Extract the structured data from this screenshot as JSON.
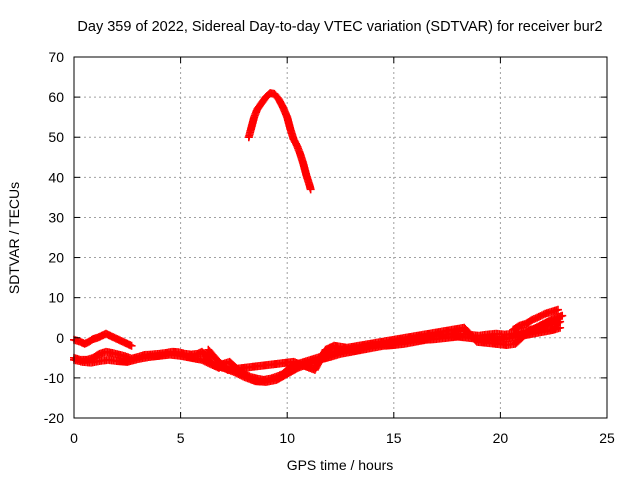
{
  "chart_data": {
    "type": "scatter",
    "title": "Day 359 of 2022, Sidereal Day-to-day VTEC variation (SDTVAR) for receiver bur2",
    "xlabel": "GPS time / hours",
    "ylabel": "SDTVAR / TECUs",
    "xlim": [
      0,
      25
    ],
    "ylim": [
      -20,
      70
    ],
    "xticks": [
      0,
      5,
      10,
      15,
      20,
      25
    ],
    "yticks": [
      -20,
      -10,
      0,
      10,
      20,
      30,
      40,
      50,
      60,
      70
    ],
    "grid": true,
    "marker": "plus",
    "color": "#ff0000",
    "series": [
      {
        "name": "bur2-upper-arc",
        "points": [
          [
            8.2,
            50
          ],
          [
            8.3,
            52
          ],
          [
            8.45,
            55
          ],
          [
            8.6,
            57
          ],
          [
            8.8,
            58.5
          ],
          [
            9.0,
            60
          ],
          [
            9.2,
            61
          ],
          [
            9.4,
            60.8
          ],
          [
            9.6,
            59.5
          ],
          [
            9.8,
            57.5
          ],
          [
            10.0,
            55
          ],
          [
            10.15,
            52
          ],
          [
            10.3,
            49.5
          ],
          [
            10.45,
            48
          ],
          [
            10.6,
            46
          ],
          [
            10.75,
            43.5
          ],
          [
            10.9,
            40.5
          ],
          [
            11.05,
            38
          ],
          [
            11.1,
            37
          ]
        ]
      },
      {
        "name": "bur2-main-band",
        "points": [
          [
            0,
            -5
          ],
          [
            0.3,
            -5.5
          ],
          [
            0.6,
            -5.5
          ],
          [
            0.9,
            -5
          ],
          [
            1.2,
            -4
          ],
          [
            1.5,
            -3.5
          ],
          [
            1.8,
            -3.8
          ],
          [
            2.1,
            -4.2
          ],
          [
            2.4,
            -4.6
          ],
          [
            2.7,
            -5.2
          ],
          [
            3.0,
            -4.8
          ],
          [
            3.3,
            -4.3
          ],
          [
            3.6,
            -4.2
          ],
          [
            4.0,
            -4
          ],
          [
            4.3,
            -3.8
          ],
          [
            4.6,
            -3.5
          ],
          [
            4.9,
            -3.6
          ],
          [
            5.2,
            -4
          ],
          [
            5.5,
            -4.2
          ],
          [
            5.8,
            -4
          ],
          [
            6.0,
            -3.5
          ],
          [
            6.2,
            -4.5
          ],
          [
            6.4,
            -6
          ],
          [
            6.6,
            -7
          ],
          [
            6.8,
            -7.5
          ],
          [
            7.0,
            -6.5
          ],
          [
            7.3,
            -6
          ],
          [
            7.5,
            -7
          ],
          [
            7.7,
            -8
          ],
          [
            8.0,
            -9
          ],
          [
            8.3,
            -9.8
          ],
          [
            8.6,
            -10.2
          ],
          [
            8.9,
            -10.5
          ],
          [
            9.2,
            -10.2
          ],
          [
            9.5,
            -9.7
          ],
          [
            9.8,
            -9
          ],
          [
            10.0,
            -8
          ],
          [
            10.2,
            -7.2
          ],
          [
            10.5,
            -6.5
          ],
          [
            10.8,
            -6
          ],
          [
            11.1,
            -5.5
          ],
          [
            11.4,
            -5
          ],
          [
            11.7,
            -4.5
          ],
          [
            12.0,
            -3.8
          ],
          [
            12.3,
            -3.3
          ],
          [
            12.6,
            -3
          ],
          [
            13.0,
            -2.8
          ],
          [
            13.4,
            -2.5
          ],
          [
            13.8,
            -2
          ],
          [
            14.2,
            -1.8
          ],
          [
            14.6,
            -1.5
          ],
          [
            15.0,
            -1
          ],
          [
            15.4,
            -0.7
          ],
          [
            15.8,
            -0.3
          ],
          [
            16.2,
            0
          ],
          [
            16.6,
            0.3
          ],
          [
            17.0,
            0.5
          ],
          [
            17.4,
            0.8
          ],
          [
            17.8,
            1
          ],
          [
            18.2,
            1
          ],
          [
            18.6,
            0.7
          ],
          [
            19.0,
            0.5
          ],
          [
            19.4,
            0.8
          ],
          [
            19.8,
            1
          ],
          [
            20.2,
            0.8
          ],
          [
            20.6,
            1
          ],
          [
            21.0,
            1.5
          ],
          [
            21.4,
            2
          ],
          [
            21.8,
            2.5
          ],
          [
            22.2,
            3
          ],
          [
            22.6,
            3.5
          ],
          [
            22.8,
            4
          ]
        ]
      },
      {
        "name": "bur2-lower-band",
        "points": [
          [
            0,
            -5.5
          ],
          [
            0.4,
            -6
          ],
          [
            0.8,
            -6.2
          ],
          [
            1.2,
            -5.8
          ],
          [
            1.6,
            -5.5
          ],
          [
            2.0,
            -5.8
          ],
          [
            2.5,
            -6
          ],
          [
            3.0,
            -5.3
          ],
          [
            3.5,
            -4.8
          ],
          [
            4.0,
            -4.5
          ],
          [
            4.5,
            -4.2
          ],
          [
            5.0,
            -4.5
          ],
          [
            5.5,
            -5
          ],
          [
            6.0,
            -5.5
          ],
          [
            6.5,
            -6.8
          ],
          [
            7.0,
            -7.5
          ],
          [
            7.5,
            -8.5
          ],
          [
            8.0,
            -9.8
          ],
          [
            8.5,
            -10.8
          ],
          [
            9.0,
            -11
          ],
          [
            9.5,
            -10.5
          ],
          [
            10.0,
            -9
          ],
          [
            10.5,
            -7.5
          ],
          [
            11.0,
            -6.5
          ],
          [
            11.5,
            -5.5
          ],
          [
            12.0,
            -4.8
          ],
          [
            12.5,
            -4
          ],
          [
            13.0,
            -3.5
          ],
          [
            13.5,
            -3
          ],
          [
            14.0,
            -2.5
          ],
          [
            14.5,
            -2
          ],
          [
            15.0,
            -1.8
          ],
          [
            15.5,
            -1.5
          ],
          [
            16.0,
            -1
          ],
          [
            16.5,
            -0.5
          ],
          [
            17.0,
            -0.3
          ],
          [
            17.5,
            0
          ],
          [
            18.0,
            0.3
          ],
          [
            18.5,
            0
          ],
          [
            19.0,
            -0.3
          ],
          [
            19.5,
            0
          ],
          [
            20.0,
            -0.5
          ],
          [
            20.5,
            0
          ],
          [
            21.0,
            0.5
          ],
          [
            21.5,
            1
          ],
          [
            22.0,
            1.5
          ],
          [
            22.5,
            2
          ],
          [
            22.8,
            2.5
          ]
        ]
      },
      {
        "name": "bur2-early-arc",
        "points": [
          [
            0,
            -0.5
          ],
          [
            0.3,
            -1
          ],
          [
            0.5,
            -1.5
          ],
          [
            0.7,
            -1
          ],
          [
            0.9,
            -0.3
          ],
          [
            1.1,
            0
          ],
          [
            1.3,
            0.5
          ],
          [
            1.5,
            1
          ],
          [
            1.7,
            0.5
          ],
          [
            1.9,
            0
          ],
          [
            2.1,
            -0.5
          ],
          [
            2.3,
            -1
          ],
          [
            2.5,
            -1.5
          ],
          [
            2.7,
            -2
          ]
        ]
      },
      {
        "name": "bur2-rising-tail",
        "points": [
          [
            20.6,
            2
          ],
          [
            20.9,
            3
          ],
          [
            21.2,
            3.5
          ],
          [
            21.5,
            4.5
          ],
          [
            21.8,
            5.2
          ],
          [
            22.1,
            6
          ],
          [
            22.4,
            6.5
          ],
          [
            22.7,
            7
          ]
        ]
      },
      {
        "name": "bur2-noise-points",
        "points": [
          [
            6.3,
            -3
          ],
          [
            6.7,
            -5.5
          ],
          [
            7.2,
            -8
          ],
          [
            10.3,
            -6
          ],
          [
            11.3,
            -8
          ],
          [
            11.8,
            -3
          ],
          [
            12.2,
            -2
          ],
          [
            12.8,
            -2.5
          ],
          [
            18.3,
            2.5
          ],
          [
            18.9,
            -1
          ],
          [
            20.3,
            -1.8
          ],
          [
            20.7,
            -1.5
          ],
          [
            21.3,
            1.5
          ],
          [
            22.4,
            4.5
          ],
          [
            22.9,
            5.5
          ]
        ]
      }
    ]
  }
}
